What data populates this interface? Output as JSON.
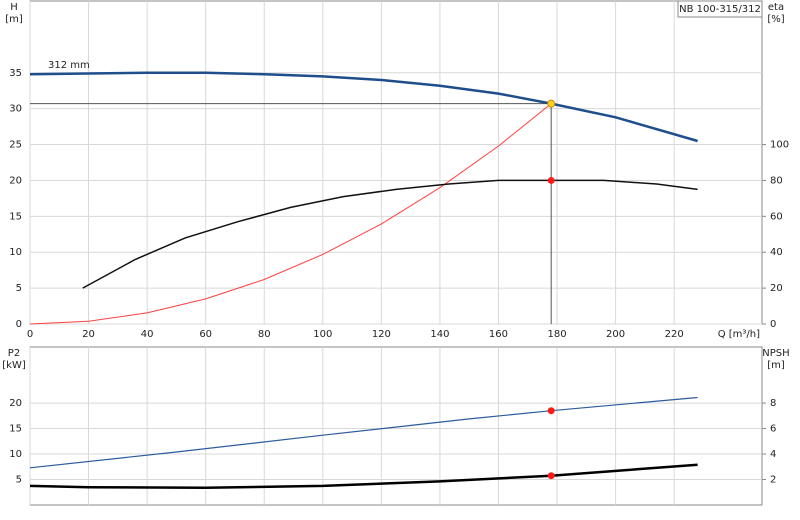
{
  "chart_data": [
    {
      "type": "line",
      "title": "NB 100-315/312",
      "annotation": "312 mm",
      "ylabel": "H",
      "yunit": "[m]",
      "y2label": "eta",
      "y2unit": "[%]",
      "xlabel": "Q [m³/h]",
      "xlim": [
        0,
        250
      ],
      "xticks": [
        0,
        20,
        40,
        60,
        80,
        100,
        120,
        140,
        160,
        180,
        200,
        220
      ],
      "show_xtick_labels": true,
      "ylim": [
        0,
        45
      ],
      "yticks": [
        0,
        5,
        10,
        15,
        20,
        25,
        30,
        35
      ],
      "y2lim": [
        0,
        180
      ],
      "y2ticks": [
        0,
        20,
        40,
        60,
        80,
        100
      ],
      "grid": true,
      "series": [
        {
          "color": "#1f4e8c",
          "width": 2.5,
          "axis": "y",
          "x": [
            0,
            20,
            40,
            60,
            80,
            100,
            120,
            140,
            160,
            178,
            200,
            228
          ],
          "values": [
            34.8,
            34.9,
            35.0,
            35.0,
            34.8,
            34.5,
            34.0,
            33.2,
            32.1,
            30.7,
            28.8,
            25.5
          ]
        },
        {
          "color": "#ff4040",
          "width": 1,
          "axis": "y",
          "x": [
            0,
            20,
            40,
            60,
            80,
            100,
            120,
            140,
            160,
            178
          ],
          "values": [
            0,
            0.39,
            1.55,
            3.49,
            6.2,
            9.69,
            13.95,
            18.99,
            24.8,
            30.7
          ]
        },
        {
          "color": "#111111",
          "width": 1.5,
          "axis": "y2",
          "x": [
            18,
            36,
            53,
            71,
            89,
            107,
            125,
            143,
            160,
            178,
            196,
            214,
            228
          ],
          "values": [
            20,
            36,
            48,
            57,
            65,
            71,
            75,
            78,
            80,
            80,
            80,
            78,
            75
          ]
        }
      ],
      "points": [
        {
          "x": 178,
          "y": 30.7,
          "axis": "y",
          "color": "#ffd21f",
          "guides": true
        },
        {
          "x": 178,
          "y": 80,
          "axis": "y2",
          "color": "#ff1a1a",
          "guides": false
        }
      ]
    },
    {
      "type": "line",
      "ylabel": "P2",
      "yunit": "[kW]",
      "y2label": "NPSH",
      "y2unit": "[m]",
      "xlim": [
        0,
        250
      ],
      "xticks": [
        0,
        20,
        40,
        60,
        80,
        100,
        120,
        140,
        160,
        180,
        200,
        220
      ],
      "show_xtick_labels": false,
      "ylim": [
        0,
        31
      ],
      "yticks": [
        5,
        10,
        15,
        20
      ],
      "y2lim": [
        0,
        12.4
      ],
      "y2ticks": [
        2,
        4,
        6,
        8
      ],
      "grid": true,
      "series": [
        {
          "color": "#2b5b9c",
          "width": 1.2,
          "axis": "y",
          "x": [
            0,
            50,
            100,
            150,
            178,
            228
          ],
          "values": [
            7.3,
            10.4,
            13.7,
            16.9,
            18.5,
            21.1
          ]
        },
        {
          "color": "#000000",
          "width": 2.5,
          "axis": "y2",
          "x": [
            0,
            20,
            60,
            100,
            140,
            178,
            228
          ],
          "values": [
            1.5,
            1.4,
            1.35,
            1.5,
            1.85,
            2.3,
            3.16
          ]
        }
      ],
      "points": [
        {
          "x": 178,
          "y": 18.5,
          "axis": "y",
          "color": "#ff1a1a",
          "guides": false
        },
        {
          "x": 178,
          "y": 2.3,
          "axis": "y2",
          "color": "#ff1a1a",
          "guides": false
        }
      ]
    }
  ]
}
